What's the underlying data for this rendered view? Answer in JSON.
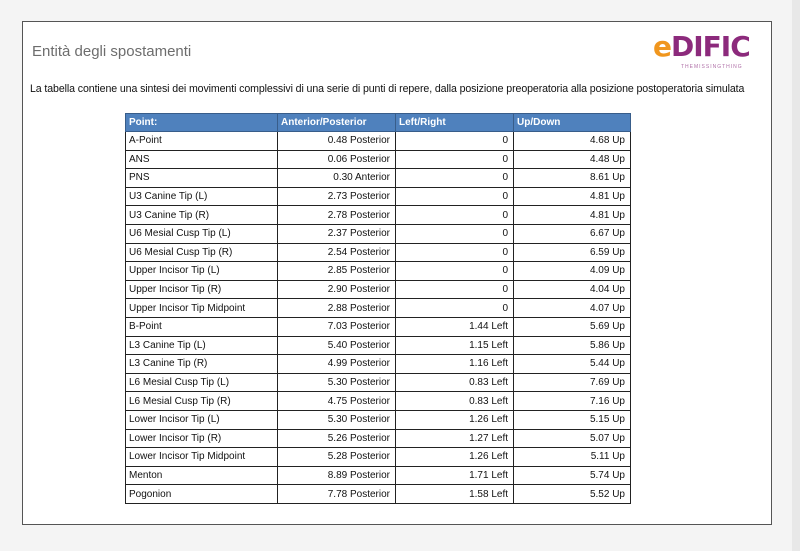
{
  "document": {
    "title": "Entità degli spostamenti",
    "description": "La tabella contiene una sintesi dei movimenti complessivi di una serie di punti di repere, dalla posizione preoperatoria alla posizione postoperatoria simulata",
    "logo": {
      "text": "eDIFIC",
      "tagline": "THEMISSINGTHING",
      "colors": {
        "primary": "#8c2a7c",
        "accent": "#f0961e"
      }
    }
  },
  "table": {
    "header_color": "#4f81bd",
    "columns": [
      "Point:",
      "Anterior/Posterior",
      "Left/Right",
      "Up/Down"
    ],
    "rows": [
      [
        "A-Point",
        "0.48 Posterior",
        "0",
        "4.68 Up"
      ],
      [
        "ANS",
        "0.06 Posterior",
        "0",
        "4.48 Up"
      ],
      [
        "PNS",
        "0.30 Anterior",
        "0",
        "8.61 Up"
      ],
      [
        "U3 Canine Tip (L)",
        "2.73 Posterior",
        "0",
        "4.81 Up"
      ],
      [
        "U3 Canine Tip (R)",
        "2.78 Posterior",
        "0",
        "4.81 Up"
      ],
      [
        "U6 Mesial Cusp Tip (L)",
        "2.37 Posterior",
        "0",
        "6.67 Up"
      ],
      [
        "U6 Mesial Cusp Tip (R)",
        "2.54 Posterior",
        "0",
        "6.59 Up"
      ],
      [
        "Upper Incisor Tip (L)",
        "2.85 Posterior",
        "0",
        "4.09 Up"
      ],
      [
        "Upper Incisor Tip (R)",
        "2.90 Posterior",
        "0",
        "4.04 Up"
      ],
      [
        "Upper Incisor Tip Midpoint",
        "2.88 Posterior",
        "0",
        "4.07 Up"
      ],
      [
        "B-Point",
        "7.03 Posterior",
        "1.44 Left",
        "5.69 Up"
      ],
      [
        "L3 Canine Tip (L)",
        "5.40 Posterior",
        "1.15 Left",
        "5.86 Up"
      ],
      [
        "L3 Canine Tip (R)",
        "4.99 Posterior",
        "1.16 Left",
        "5.44 Up"
      ],
      [
        "L6 Mesial Cusp Tip (L)",
        "5.30 Posterior",
        "0.83 Left",
        "7.69 Up"
      ],
      [
        "L6 Mesial Cusp Tip (R)",
        "4.75 Posterior",
        "0.83 Left",
        "7.16 Up"
      ],
      [
        "Lower Incisor Tip (L)",
        "5.30 Posterior",
        "1.26 Left",
        "5.15 Up"
      ],
      [
        "Lower Incisor Tip (R)",
        "5.26 Posterior",
        "1.27 Left",
        "5.07 Up"
      ],
      [
        "Lower Incisor Tip Midpoint",
        "5.28 Posterior",
        "1.26 Left",
        "5.11 Up"
      ],
      [
        "Menton",
        "8.89 Posterior",
        "1.71 Left",
        "5.74 Up"
      ],
      [
        "Pogonion",
        "7.78 Posterior",
        "1.58 Left",
        "5.52 Up"
      ]
    ]
  }
}
